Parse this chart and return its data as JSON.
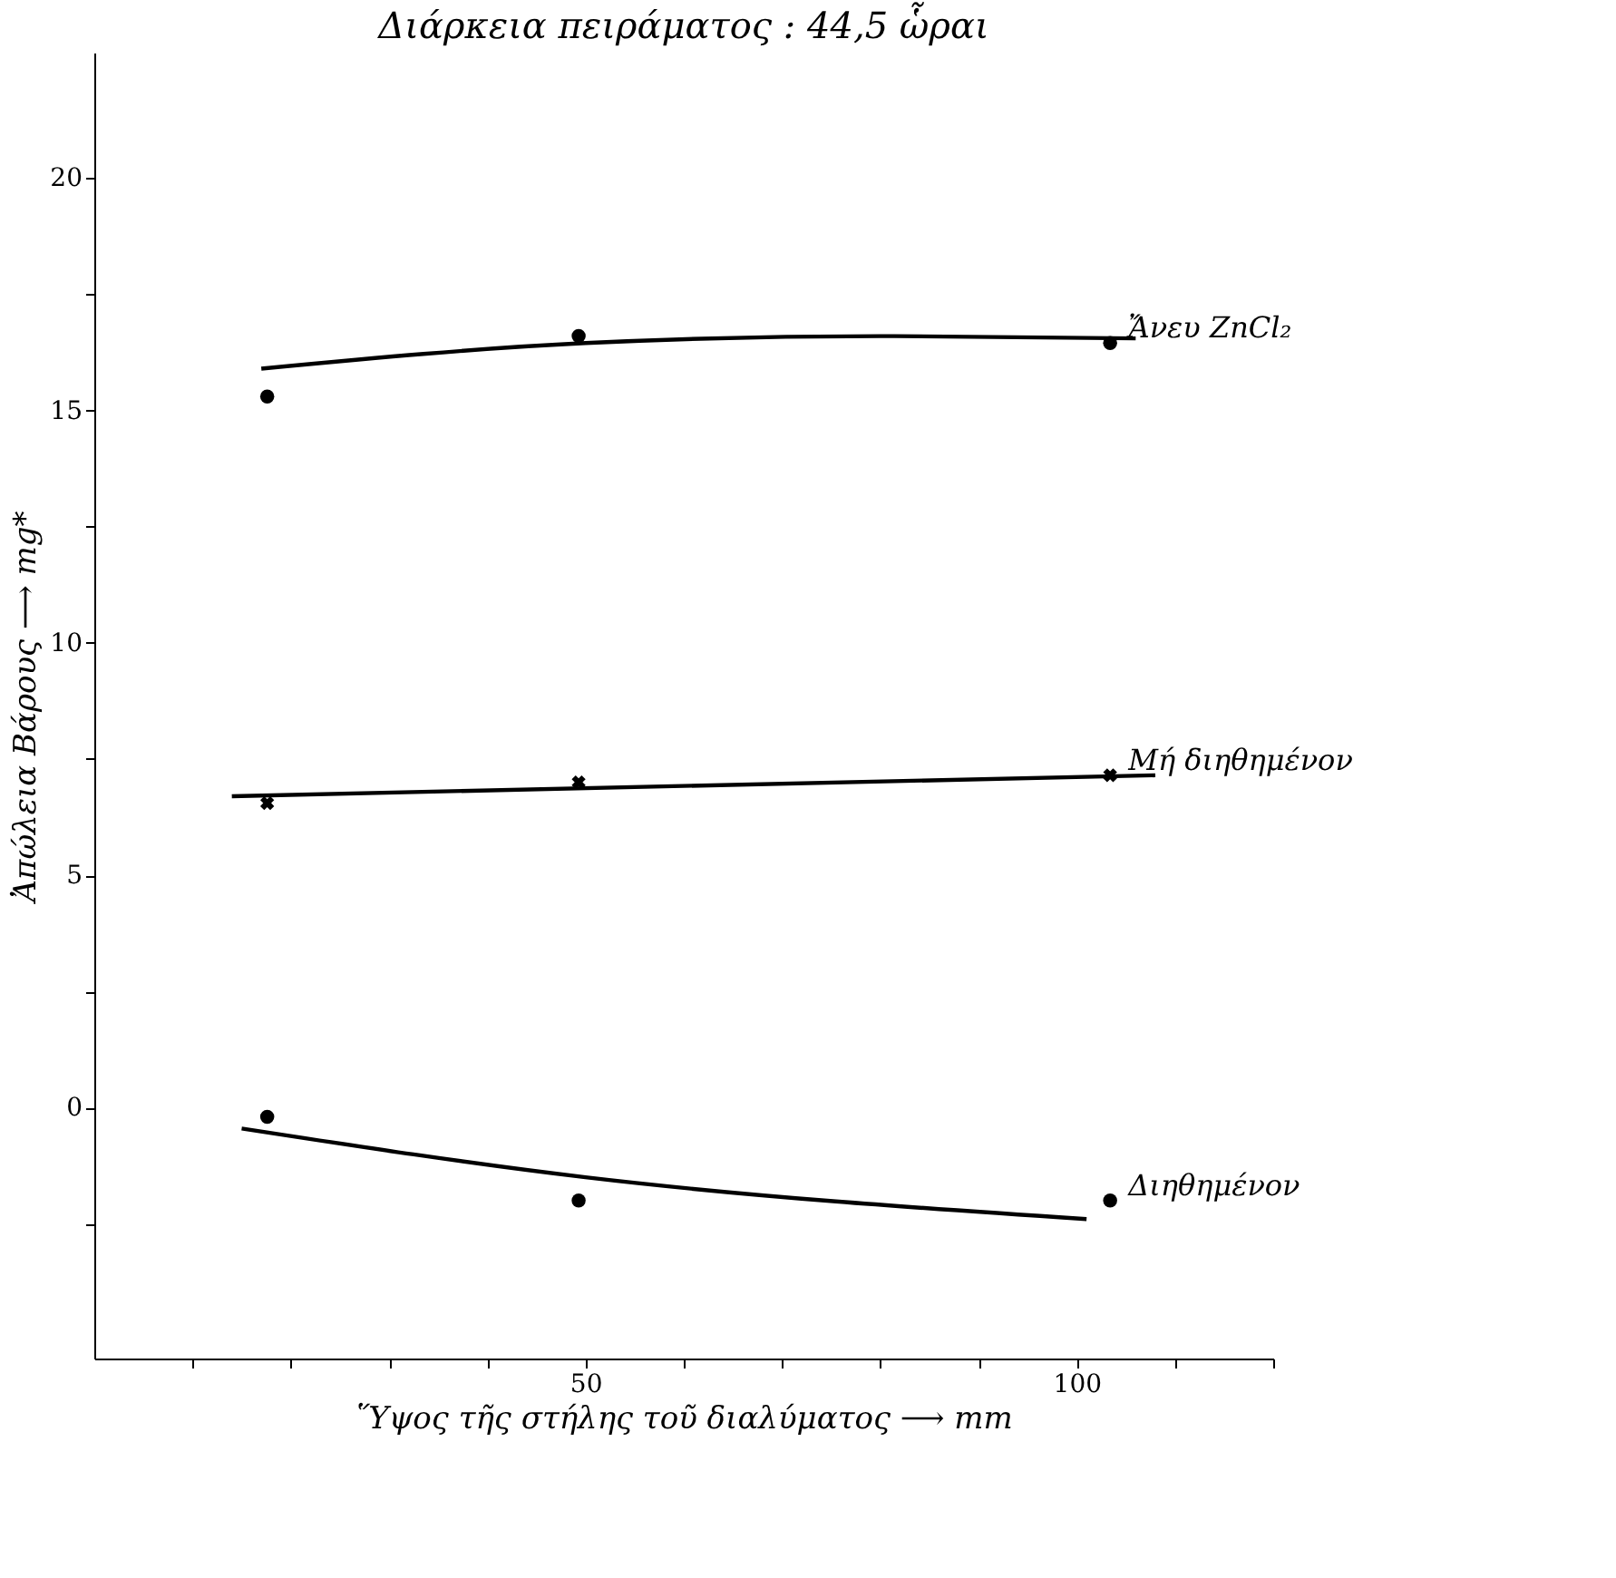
{
  "chart_data": {
    "type": "scatter",
    "title": "Διάρκεια πειράματος : 44,5 ὧραι",
    "xlabel": "Ὕψος τῆς στήλης τοῦ διαλύματος ⟶ mm",
    "ylabel": "Ἀπώλεια Βάρους ⟶ mg*",
    "xlim": [
      0,
      120
    ],
    "ylim": [
      -5.4,
      22.7
    ],
    "xticks": [
      {
        "value": 10,
        "label": null
      },
      {
        "value": 20,
        "label": null
      },
      {
        "value": 30,
        "label": null
      },
      {
        "value": 40,
        "label": null
      },
      50,
      {
        "value": 60,
        "label": null
      },
      {
        "value": 70,
        "label": null
      },
      {
        "value": 80,
        "label": null
      },
      {
        "value": 90,
        "label": null
      },
      100,
      {
        "value": 110,
        "label": null
      },
      {
        "value": 120,
        "label": null
      }
    ],
    "yticks": [
      {
        "value": -2.5,
        "label": null
      },
      0,
      {
        "value": 2.5,
        "label": null
      },
      5,
      {
        "value": 7.5,
        "label": null
      },
      10,
      {
        "value": 12.5,
        "label": null
      },
      15,
      {
        "value": 17.5,
        "label": null
      },
      20
    ],
    "grid": false,
    "series": [
      {
        "name": "Ἄνευ ZnCl₂",
        "marker": "circle",
        "color": "#000000",
        "x": [
          17.6,
          49.3,
          103.4
        ],
        "values": [
          15.3,
          16.6,
          16.45
        ]
      },
      {
        "type": "line",
        "marker": "none",
        "color": "#000000",
        "x": [
          17,
          50,
          80,
          106
        ],
        "values": [
          15.9,
          16.45,
          16.6,
          16.55
        ]
      },
      {
        "name": "Μή διηθημένον",
        "marker": "cross",
        "color": "#000000",
        "x": [
          17.6,
          49.3,
          103.4
        ],
        "values": [
          6.55,
          7.0,
          7.15
        ]
      },
      {
        "type": "line",
        "marker": "none",
        "color": "#000000",
        "x": [
          14,
          108
        ],
        "values": [
          6.7,
          7.15
        ]
      },
      {
        "name": "Διηθημένον",
        "marker": "circle",
        "color": "#000000",
        "x": [
          17.6,
          49.3,
          103.4
        ],
        "values": [
          -0.2,
          -2.0,
          -2.0
        ]
      },
      {
        "type": "line",
        "marker": "none",
        "color": "#000000",
        "x": [
          15,
          50,
          101
        ],
        "values": [
          -0.45,
          -1.5,
          -2.4
        ]
      }
    ]
  }
}
